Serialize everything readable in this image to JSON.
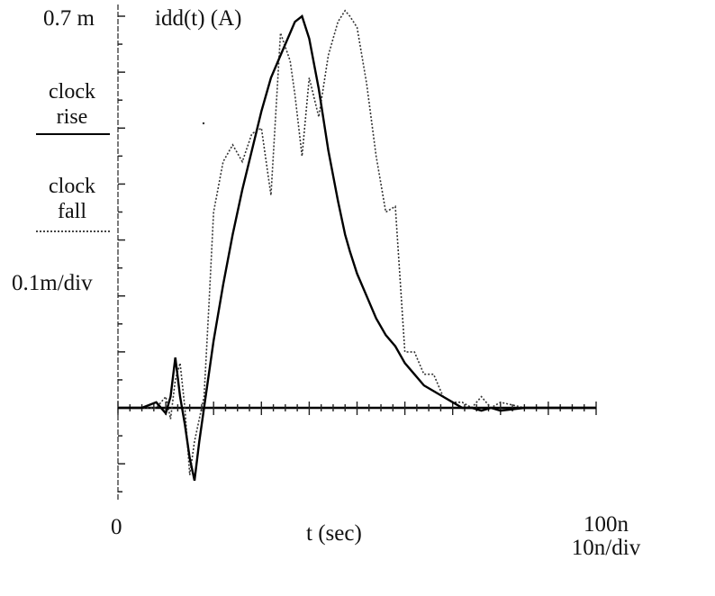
{
  "chart_data": {
    "type": "line",
    "title": "idd(t) (A)",
    "xlabel": "t (sec)",
    "ylabel": "idd(t) (A)",
    "x_unit": "s",
    "y_unit": "A",
    "xlim": [
      0,
      1e-07
    ],
    "ylim": [
      -0.00015,
      0.0007
    ],
    "x_tick_labels": {
      "start": "0",
      "end": "100n",
      "scale": "10n/div"
    },
    "y_tick_labels": {
      "top": "0.7 m",
      "scale": "0.1m/div"
    },
    "grid": false,
    "legend_position": "left",
    "legend": [
      {
        "label": "clock rise",
        "style": "solid"
      },
      {
        "label": "clock fall",
        "style": "dotted"
      }
    ],
    "x_ns": [
      0,
      5,
      8,
      10,
      11,
      12,
      13,
      14,
      15,
      16,
      17,
      18,
      19,
      20,
      22,
      24,
      26,
      28,
      30,
      32,
      34,
      36,
      37,
      38.5,
      40,
      42,
      44,
      46,
      47.5,
      48.5,
      50,
      52,
      54,
      56,
      58,
      60,
      62,
      64,
      66,
      68,
      70,
      72,
      74,
      76,
      78,
      80,
      85,
      90,
      95,
      100
    ],
    "series": [
      {
        "name": "clock rise",
        "style": "solid",
        "values_mA": [
          0,
          0,
          0.01,
          -0.01,
          0.02,
          0.09,
          0.02,
          -0.03,
          -0.09,
          -0.13,
          -0.06,
          0.0,
          0.06,
          0.12,
          0.22,
          0.31,
          0.39,
          0.46,
          0.53,
          0.59,
          0.63,
          0.67,
          0.69,
          0.7,
          0.66,
          0.57,
          0.46,
          0.37,
          0.31,
          0.28,
          0.24,
          0.2,
          0.16,
          0.13,
          0.11,
          0.08,
          0.06,
          0.04,
          0.03,
          0.02,
          0.01,
          0.0,
          0.0,
          -0.005,
          0.0,
          -0.005,
          0.0,
          0.0,
          0.0,
          0.0
        ]
      },
      {
        "name": "clock fall",
        "style": "dotted",
        "values_mA": [
          0,
          0,
          0.0,
          0.02,
          -0.02,
          0.05,
          0.08,
          0.0,
          -0.12,
          -0.06,
          -0.02,
          0.02,
          0.18,
          0.35,
          0.44,
          0.47,
          0.44,
          0.49,
          0.5,
          0.38,
          0.67,
          0.62,
          0.56,
          0.45,
          0.59,
          0.52,
          0.63,
          0.69,
          0.71,
          0.7,
          0.68,
          0.58,
          0.45,
          0.35,
          0.36,
          0.1,
          0.1,
          0.06,
          0.06,
          0.02,
          0.01,
          0.01,
          0.0,
          0.02,
          0.0,
          0.01,
          0.0,
          0.0,
          0.0,
          0.0
        ]
      }
    ]
  },
  "labels": {
    "y_top": "0.7 m",
    "title": "idd(t) (A)",
    "legend_rise_1": "clock",
    "legend_rise_2": "rise",
    "legend_fall_1": "clock",
    "legend_fall_2": "fall",
    "y_scale": "0.1m/div",
    "x_start": "0",
    "x_label": "t (sec)",
    "x_end": "100n",
    "x_scale": "10n/div"
  }
}
